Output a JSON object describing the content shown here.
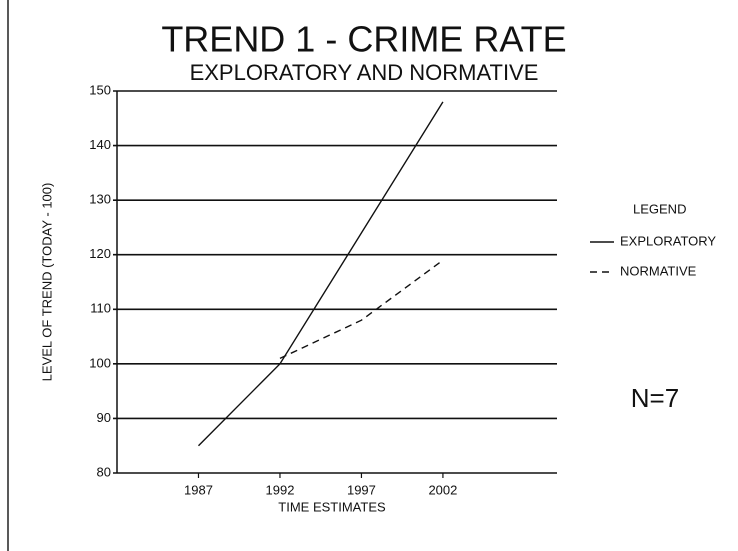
{
  "chart_data": {
    "type": "line",
    "title": "TREND 1 - CRIME RATE",
    "subtitle": "EXPLORATORY AND NORMATIVE",
    "x_label": "TIME ESTIMATES",
    "y_label": "LEVEL OF TREND (TODAY - 100)",
    "x": [
      1987,
      1992,
      1997,
      2002
    ],
    "series": [
      {
        "name": "EXPLORATORY",
        "color": "#111111",
        "dash": "solid",
        "values": [
          85,
          100,
          124,
          148
        ]
      },
      {
        "name": "NORMATIVE",
        "color": "#111111",
        "dash": "dashed",
        "values": [
          null,
          101,
          108,
          119
        ]
      }
    ],
    "xlim": [
      1982,
      2009
    ],
    "ylim": [
      80,
      150
    ],
    "xticks": [
      1987,
      1992,
      1997,
      2002
    ],
    "yticks": [
      80,
      90,
      100,
      110,
      120,
      130,
      140,
      150
    ],
    "grid": true,
    "legend_title": "LEGEND",
    "legend_position": "right",
    "annotation": "N=7"
  }
}
